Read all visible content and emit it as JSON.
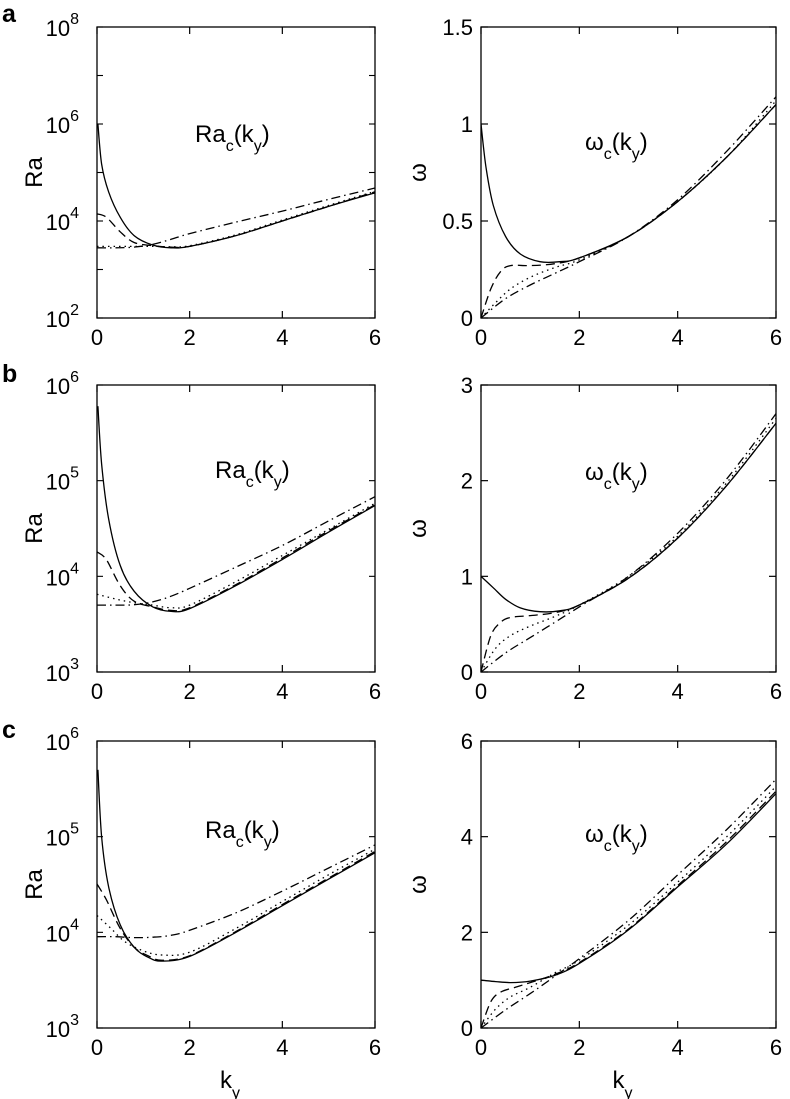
{
  "panel_letters": [
    "a",
    "b",
    "c"
  ],
  "chart_data": [
    {
      "panel": "a",
      "type": "line",
      "yscale": "log",
      "annotation": {
        "main": "Ra",
        "sub1": "c",
        "mid": "(k",
        "sub2": "y",
        "end": ")"
      },
      "ylabel": "Ra",
      "xlabel": "",
      "xlim": [
        0,
        6
      ],
      "ylim": [
        100,
        100000000
      ],
      "xticks": [
        "0",
        "2",
        "4",
        "6"
      ],
      "yticks": [
        {
          "base": "10",
          "exp": "2"
        },
        {
          "base": "10",
          "exp": "4"
        },
        {
          "base": "10",
          "exp": "6"
        },
        {
          "base": "10",
          "exp": "8"
        }
      ],
      "series": [
        {
          "style": "solid",
          "x": [
            0.02,
            0.1,
            0.25,
            0.5,
            0.8,
            1.2,
            1.6,
            2.0,
            3.0,
            4.0,
            5.0,
            6.0
          ],
          "y": [
            1000000,
            150000,
            40000,
            12000,
            5000,
            3200,
            2800,
            3000,
            5000,
            10000,
            20000,
            38000
          ]
        },
        {
          "style": "dashed",
          "x": [
            0.0,
            0.2,
            0.5,
            0.8,
            1.2,
            1.6,
            2.0,
            3.0,
            4.0,
            5.0,
            6.0
          ],
          "y": [
            14000,
            12000,
            6000,
            3600,
            3100,
            2900,
            3000,
            5000,
            10000,
            20000,
            40000
          ]
        },
        {
          "style": "dotted",
          "x": [
            0.0,
            0.4,
            0.8,
            1.2,
            1.6,
            2.0,
            3.0,
            4.0,
            5.0,
            6.0
          ],
          "y": [
            3000,
            3000,
            3000,
            3000,
            2950,
            3100,
            5200,
            10500,
            21000,
            41000
          ]
        },
        {
          "style": "dashdot",
          "x": [
            0.0,
            0.4,
            0.8,
            1.2,
            1.6,
            2.0,
            3.0,
            4.0,
            5.0,
            6.0
          ],
          "y": [
            2800,
            2800,
            2900,
            3300,
            4200,
            5500,
            9500,
            16000,
            28000,
            48000
          ]
        }
      ]
    },
    {
      "panel": "a",
      "type": "line",
      "yscale": "linear",
      "annotation": {
        "main": "ω",
        "sub1": "c",
        "mid": "(k",
        "sub2": "y",
        "end": ")"
      },
      "ylabel": "ω",
      "xlabel": "",
      "xlim": [
        0,
        6
      ],
      "ylim": [
        0,
        1.5
      ],
      "xticks": [
        "0",
        "2",
        "4",
        "6"
      ],
      "yticks": [
        {
          "value": 0,
          "label": "0"
        },
        {
          "value": 0.5,
          "label": "0.5"
        },
        {
          "value": 1,
          "label": "1"
        },
        {
          "value": 1.5,
          "label": "1.5"
        }
      ],
      "series": [
        {
          "style": "solid",
          "x": [
            0.0,
            0.1,
            0.25,
            0.5,
            0.8,
            1.2,
            1.6,
            2.0,
            3.0,
            4.0,
            5.0,
            6.0
          ],
          "y": [
            1.0,
            0.78,
            0.58,
            0.42,
            0.33,
            0.29,
            0.29,
            0.31,
            0.42,
            0.6,
            0.83,
            1.1
          ]
        },
        {
          "style": "dashed",
          "x": [
            0.0,
            0.2,
            0.4,
            0.6,
            1.0,
            1.5,
            2.0,
            3.0,
            4.0,
            5.0,
            6.0
          ],
          "y": [
            0.0,
            0.15,
            0.24,
            0.27,
            0.27,
            0.28,
            0.31,
            0.42,
            0.6,
            0.83,
            1.1
          ]
        },
        {
          "style": "dotted",
          "x": [
            0.0,
            0.3,
            0.6,
            1.0,
            1.5,
            2.0,
            3.0,
            4.0,
            5.0,
            6.0
          ],
          "y": [
            0.0,
            0.08,
            0.15,
            0.21,
            0.26,
            0.3,
            0.42,
            0.6,
            0.83,
            1.12
          ]
        },
        {
          "style": "dashdot",
          "x": [
            0.0,
            0.5,
            1.0,
            1.5,
            2.0,
            3.0,
            4.0,
            5.0,
            6.0
          ],
          "y": [
            0.0,
            0.1,
            0.17,
            0.23,
            0.29,
            0.42,
            0.61,
            0.86,
            1.14
          ]
        }
      ]
    },
    {
      "panel": "b",
      "type": "line",
      "yscale": "log",
      "annotation": {
        "main": "Ra",
        "sub1": "c",
        "mid": "(k",
        "sub2": "y",
        "end": ")"
      },
      "ylabel": "Ra",
      "xlabel": "",
      "xlim": [
        0,
        6
      ],
      "ylim": [
        1000,
        1000000
      ],
      "xticks": [
        "0",
        "2",
        "4",
        "6"
      ],
      "yticks": [
        {
          "base": "10",
          "exp": "3"
        },
        {
          "base": "10",
          "exp": "4"
        },
        {
          "base": "10",
          "exp": "5"
        },
        {
          "base": "10",
          "exp": "6"
        }
      ],
      "series": [
        {
          "style": "solid",
          "x": [
            0.02,
            0.1,
            0.25,
            0.5,
            0.8,
            1.2,
            1.6,
            2.0,
            3.0,
            4.0,
            5.0,
            6.0
          ],
          "y": [
            600000,
            150000,
            40000,
            13000,
            7000,
            4800,
            4300,
            4600,
            8000,
            15000,
            29000,
            55000
          ]
        },
        {
          "style": "dashed",
          "x": [
            0.0,
            0.2,
            0.5,
            0.8,
            1.2,
            1.6,
            2.0,
            3.0,
            4.0,
            5.0,
            6.0
          ],
          "y": [
            18000,
            15000,
            8000,
            5500,
            4800,
            4400,
            4700,
            8200,
            15500,
            30000,
            56000
          ]
        },
        {
          "style": "dotted",
          "x": [
            0.0,
            0.4,
            0.8,
            1.2,
            1.6,
            2.0,
            3.0,
            4.0,
            5.0,
            6.0
          ],
          "y": [
            6500,
            5800,
            5300,
            5000,
            4700,
            5000,
            8800,
            16500,
            31000,
            58000
          ]
        },
        {
          "style": "dashdot",
          "x": [
            0.0,
            0.4,
            0.8,
            1.2,
            1.6,
            2.0,
            3.0,
            4.0,
            5.0,
            6.0
          ],
          "y": [
            5000,
            5000,
            5050,
            5400,
            6200,
            7500,
            12500,
            21000,
            38000,
            68000
          ]
        }
      ]
    },
    {
      "panel": "b",
      "type": "line",
      "yscale": "linear",
      "annotation": {
        "main": "ω",
        "sub1": "c",
        "mid": "(k",
        "sub2": "y",
        "end": ")"
      },
      "ylabel": "ω",
      "xlabel": "",
      "xlim": [
        0,
        6
      ],
      "ylim": [
        0,
        3
      ],
      "xticks": [
        "0",
        "2",
        "4",
        "6"
      ],
      "yticks": [
        {
          "value": 0,
          "label": "0"
        },
        {
          "value": 1,
          "label": "1"
        },
        {
          "value": 2,
          "label": "2"
        },
        {
          "value": 3,
          "label": "3"
        }
      ],
      "series": [
        {
          "style": "solid",
          "x": [
            0.0,
            0.25,
            0.5,
            0.8,
            1.2,
            1.6,
            2.0,
            3.0,
            4.0,
            5.0,
            6.0
          ],
          "y": [
            1.0,
            0.88,
            0.76,
            0.67,
            0.63,
            0.64,
            0.7,
            0.98,
            1.4,
            1.95,
            2.6
          ]
        },
        {
          "style": "dashed",
          "x": [
            0.0,
            0.2,
            0.4,
            0.6,
            1.0,
            1.5,
            2.0,
            3.0,
            4.0,
            5.0,
            6.0
          ],
          "y": [
            0.0,
            0.38,
            0.52,
            0.57,
            0.59,
            0.62,
            0.7,
            0.98,
            1.4,
            1.95,
            2.6
          ]
        },
        {
          "style": "dotted",
          "x": [
            0.0,
            0.3,
            0.6,
            1.0,
            1.5,
            2.0,
            3.0,
            4.0,
            5.0,
            6.0
          ],
          "y": [
            0.0,
            0.25,
            0.38,
            0.48,
            0.58,
            0.7,
            1.0,
            1.42,
            1.98,
            2.65
          ]
        },
        {
          "style": "dashdot",
          "x": [
            0.0,
            0.5,
            1.0,
            1.5,
            2.0,
            3.0,
            4.0,
            5.0,
            6.0
          ],
          "y": [
            0.0,
            0.2,
            0.36,
            0.52,
            0.68,
            1.0,
            1.45,
            2.02,
            2.7
          ]
        }
      ]
    },
    {
      "panel": "c",
      "type": "line",
      "yscale": "log",
      "annotation": {
        "main": "Ra",
        "sub1": "c",
        "mid": "(k",
        "sub2": "y",
        "end": ")"
      },
      "ylabel": "Ra",
      "xlabel": "k",
      "xlabel_sub": "y",
      "xlim": [
        0,
        6
      ],
      "ylim": [
        1000,
        1000000
      ],
      "xticks": [
        "0",
        "2",
        "4",
        "6"
      ],
      "yticks": [
        {
          "base": "10",
          "exp": "3"
        },
        {
          "base": "10",
          "exp": "4"
        },
        {
          "base": "10",
          "exp": "5"
        },
        {
          "base": "10",
          "exp": "6"
        }
      ],
      "series": [
        {
          "style": "solid",
          "x": [
            0.02,
            0.1,
            0.25,
            0.5,
            0.8,
            1.1,
            1.4,
            2.0,
            3.0,
            4.0,
            5.0,
            6.0
          ],
          "y": [
            500000,
            100000,
            30000,
            12000,
            7000,
            5500,
            5000,
            5600,
            10000,
            19000,
            36000,
            68000
          ]
        },
        {
          "style": "dashed",
          "x": [
            0.0,
            0.2,
            0.5,
            0.8,
            1.1,
            1.4,
            2.0,
            3.0,
            4.0,
            5.0,
            6.0
          ],
          "y": [
            32000,
            22000,
            11000,
            7000,
            5700,
            5100,
            5700,
            10200,
            19500,
            37000,
            70000
          ]
        },
        {
          "style": "dotted",
          "x": [
            0.0,
            0.3,
            0.6,
            1.0,
            1.4,
            2.0,
            3.0,
            4.0,
            5.0,
            6.0
          ],
          "y": [
            15000,
            11000,
            8000,
            6400,
            5800,
            6200,
            11000,
            21000,
            40000,
            74000
          ]
        },
        {
          "style": "dashdot",
          "x": [
            0.0,
            0.4,
            0.8,
            1.2,
            1.6,
            2.0,
            3.0,
            4.0,
            5.0,
            6.0
          ],
          "y": [
            9000,
            9000,
            8800,
            8900,
            9300,
            10500,
            16000,
            27000,
            47000,
            82000
          ]
        }
      ]
    },
    {
      "panel": "c",
      "type": "line",
      "yscale": "linear",
      "annotation": {
        "main": "ω",
        "sub1": "c",
        "mid": "(k",
        "sub2": "y",
        "end": ")"
      },
      "ylabel": "ω",
      "xlabel": "k",
      "xlabel_sub": "y",
      "xlim": [
        0,
        6
      ],
      "ylim": [
        0,
        6
      ],
      "xticks": [
        "0",
        "2",
        "4",
        "6"
      ],
      "yticks": [
        {
          "value": 0,
          "label": "0"
        },
        {
          "value": 2,
          "label": "2"
        },
        {
          "value": 4,
          "label": "4"
        },
        {
          "value": 6,
          "label": "6"
        }
      ],
      "series": [
        {
          "style": "solid",
          "x": [
            0.0,
            0.3,
            0.6,
            1.0,
            1.5,
            2.0,
            3.0,
            4.0,
            5.0,
            6.0
          ],
          "y": [
            1.0,
            0.97,
            0.95,
            0.98,
            1.1,
            1.35,
            2.05,
            2.95,
            3.85,
            4.9
          ]
        },
        {
          "style": "dashed",
          "x": [
            0.0,
            0.2,
            0.4,
            0.7,
            1.0,
            1.5,
            2.0,
            3.0,
            4.0,
            5.0,
            6.0
          ],
          "y": [
            0.0,
            0.55,
            0.75,
            0.85,
            0.95,
            1.12,
            1.37,
            2.07,
            2.98,
            3.9,
            4.95
          ]
        },
        {
          "style": "dotted",
          "x": [
            0.0,
            0.3,
            0.6,
            1.0,
            1.5,
            2.0,
            3.0,
            4.0,
            5.0,
            6.0
          ],
          "y": [
            0.0,
            0.4,
            0.65,
            0.85,
            1.15,
            1.42,
            2.15,
            3.05,
            4.0,
            5.05
          ]
        },
        {
          "style": "dashdot",
          "x": [
            0.0,
            0.5,
            1.0,
            1.5,
            2.0,
            3.0,
            4.0,
            5.0,
            6.0
          ],
          "y": [
            0.0,
            0.38,
            0.72,
            1.08,
            1.45,
            2.25,
            3.2,
            4.15,
            5.2
          ]
        }
      ]
    }
  ]
}
